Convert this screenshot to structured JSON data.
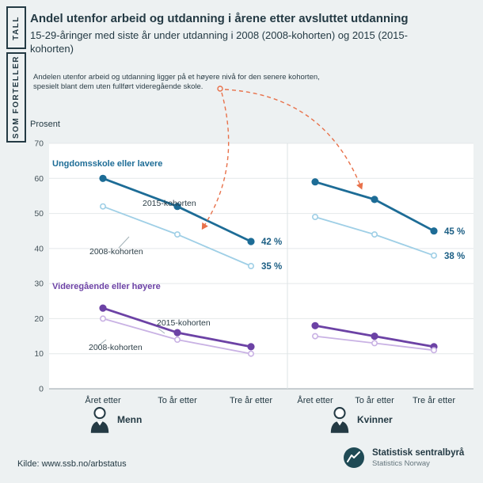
{
  "brand": {
    "tab1": "TALL",
    "tab2": "SOM FORTELLER"
  },
  "header": {
    "title": "Andel utenfor arbeid og utdanning i årene etter avsluttet utdanning",
    "subtitle": "15-29-åringer med siste år under utdanning i 2008 (2008-kohorten) og 2015 (2015-kohorten)"
  },
  "annotation": {
    "line1": "Andelen utenfor arbeid og utdanning ligger på et høyere nivå for den senere kohorten,",
    "line2": "spesielt blant dem uten fullført videregående skole.",
    "color": "#e8714a"
  },
  "chart_data": {
    "type": "line",
    "title": "Andel utenfor arbeid og utdanning i årene etter avsluttet utdanning",
    "xlabel": "",
    "ylabel": "Prosent",
    "ylim": [
      0,
      70
    ],
    "yticks": [
      0,
      10,
      20,
      30,
      40,
      50,
      60,
      70
    ],
    "grid": true,
    "legend_position": "bottom",
    "categories": [
      "Året etter",
      "To år etter",
      "Tre år etter"
    ],
    "panels": [
      {
        "name": "Menn",
        "series": [
          {
            "name": "Ungdomsskole eller lavere – 2015-kohorten",
            "values": [
              60,
              52,
              42
            ],
            "color": "#1d6c96",
            "open": false
          },
          {
            "name": "Ungdomsskole eller lavere – 2008-kohorten",
            "values": [
              52,
              44,
              35
            ],
            "color": "#9fcfe6",
            "open": true
          },
          {
            "name": "Videregående eller høyere – 2015-kohorten",
            "values": [
              23,
              16,
              12
            ],
            "color": "#6c42a5",
            "open": false
          },
          {
            "name": "Videregående eller høyere – 2008-kohorten",
            "values": [
              20,
              14,
              10
            ],
            "color": "#c9b2e4",
            "open": true
          }
        ]
      },
      {
        "name": "Kvinner",
        "series": [
          {
            "name": "Ungdomsskole eller lavere – 2015-kohorten",
            "values": [
              59,
              54,
              45
            ],
            "color": "#1d6c96",
            "open": false
          },
          {
            "name": "Ungdomsskole eller lavere – 2008-kohorten",
            "values": [
              49,
              44,
              38
            ],
            "color": "#9fcfe6",
            "open": true
          },
          {
            "name": "Videregående eller høyere – 2015-kohorten",
            "values": [
              18,
              15,
              12
            ],
            "color": "#6c42a5",
            "open": false
          },
          {
            "name": "Videregående eller høyere – 2008-kohorten",
            "values": [
              15,
              13,
              11
            ],
            "color": "#c9b2e4",
            "open": true
          }
        ]
      }
    ],
    "group_labels": [
      {
        "id": "u-group",
        "text": "Ungdomsskole eller lavere",
        "color": "#1d6c96"
      },
      {
        "id": "v-group",
        "text": "Videregående eller høyere",
        "color": "#6c42a5"
      }
    ],
    "series_labels": [
      {
        "id": "men-u-2015",
        "text": "2015-kohorten"
      },
      {
        "id": "men-u-2008",
        "text": "2008-kohorten"
      },
      {
        "id": "men-v-2015",
        "text": "2015-kohorten"
      },
      {
        "id": "men-v-2008",
        "text": "2008-kohorten"
      }
    ],
    "value_labels": [
      {
        "id": "men-u-2015-end",
        "text": "42 %"
      },
      {
        "id": "men-u-2008-end",
        "text": "35 %"
      },
      {
        "id": "women-u-2015-end",
        "text": "45 %"
      },
      {
        "id": "women-u-2008-end",
        "text": "38 %"
      }
    ]
  },
  "footer": {
    "source": "Kilde: www.ssb.no/arbstatus",
    "org_name": "Statistisk sentralbyrå",
    "org_name_en": "Statistics Norway"
  }
}
